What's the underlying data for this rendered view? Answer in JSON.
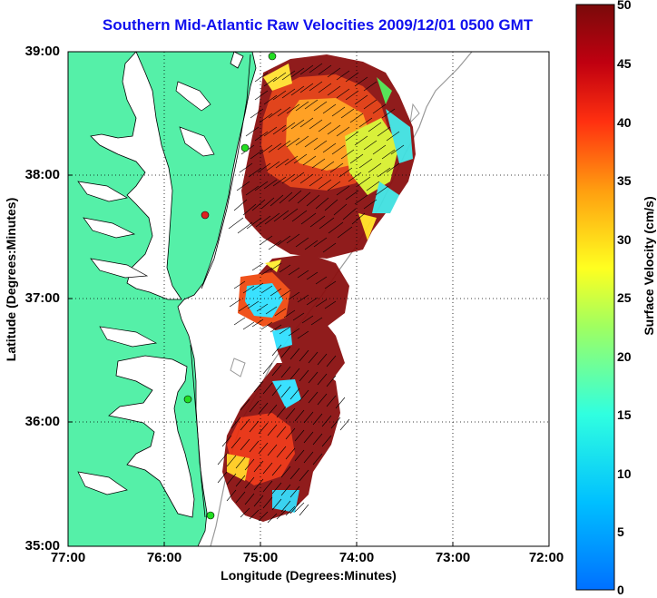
{
  "title": "Southern Mid-Atlantic Raw Velocities 2009/12/01 0500 GMT",
  "x_axis": {
    "label": "Longitude (Degrees:Minutes)",
    "ticks": [
      "77:00",
      "76:00",
      "75:00",
      "74:00",
      "73:00",
      "72:00"
    ]
  },
  "y_axis": {
    "label": "Latitude (Degrees:Minutes)",
    "ticks": [
      "39:00",
      "38:00",
      "37:00",
      "36:00",
      "35:00"
    ]
  },
  "colorbar": {
    "label": "Surface Velocity (cm/s)",
    "ticks": [
      "50",
      "45",
      "40",
      "35",
      "30",
      "25",
      "20",
      "15",
      "10",
      "5",
      "0"
    ],
    "min": 0,
    "max": 50
  },
  "colors": {
    "land": "#55f0a8",
    "title": "#1010ee",
    "station": "#22dd22"
  },
  "map_extent": {
    "lon_min": -77,
    "lon_max": -72,
    "lat_min": 35,
    "lat_max": 39
  }
}
